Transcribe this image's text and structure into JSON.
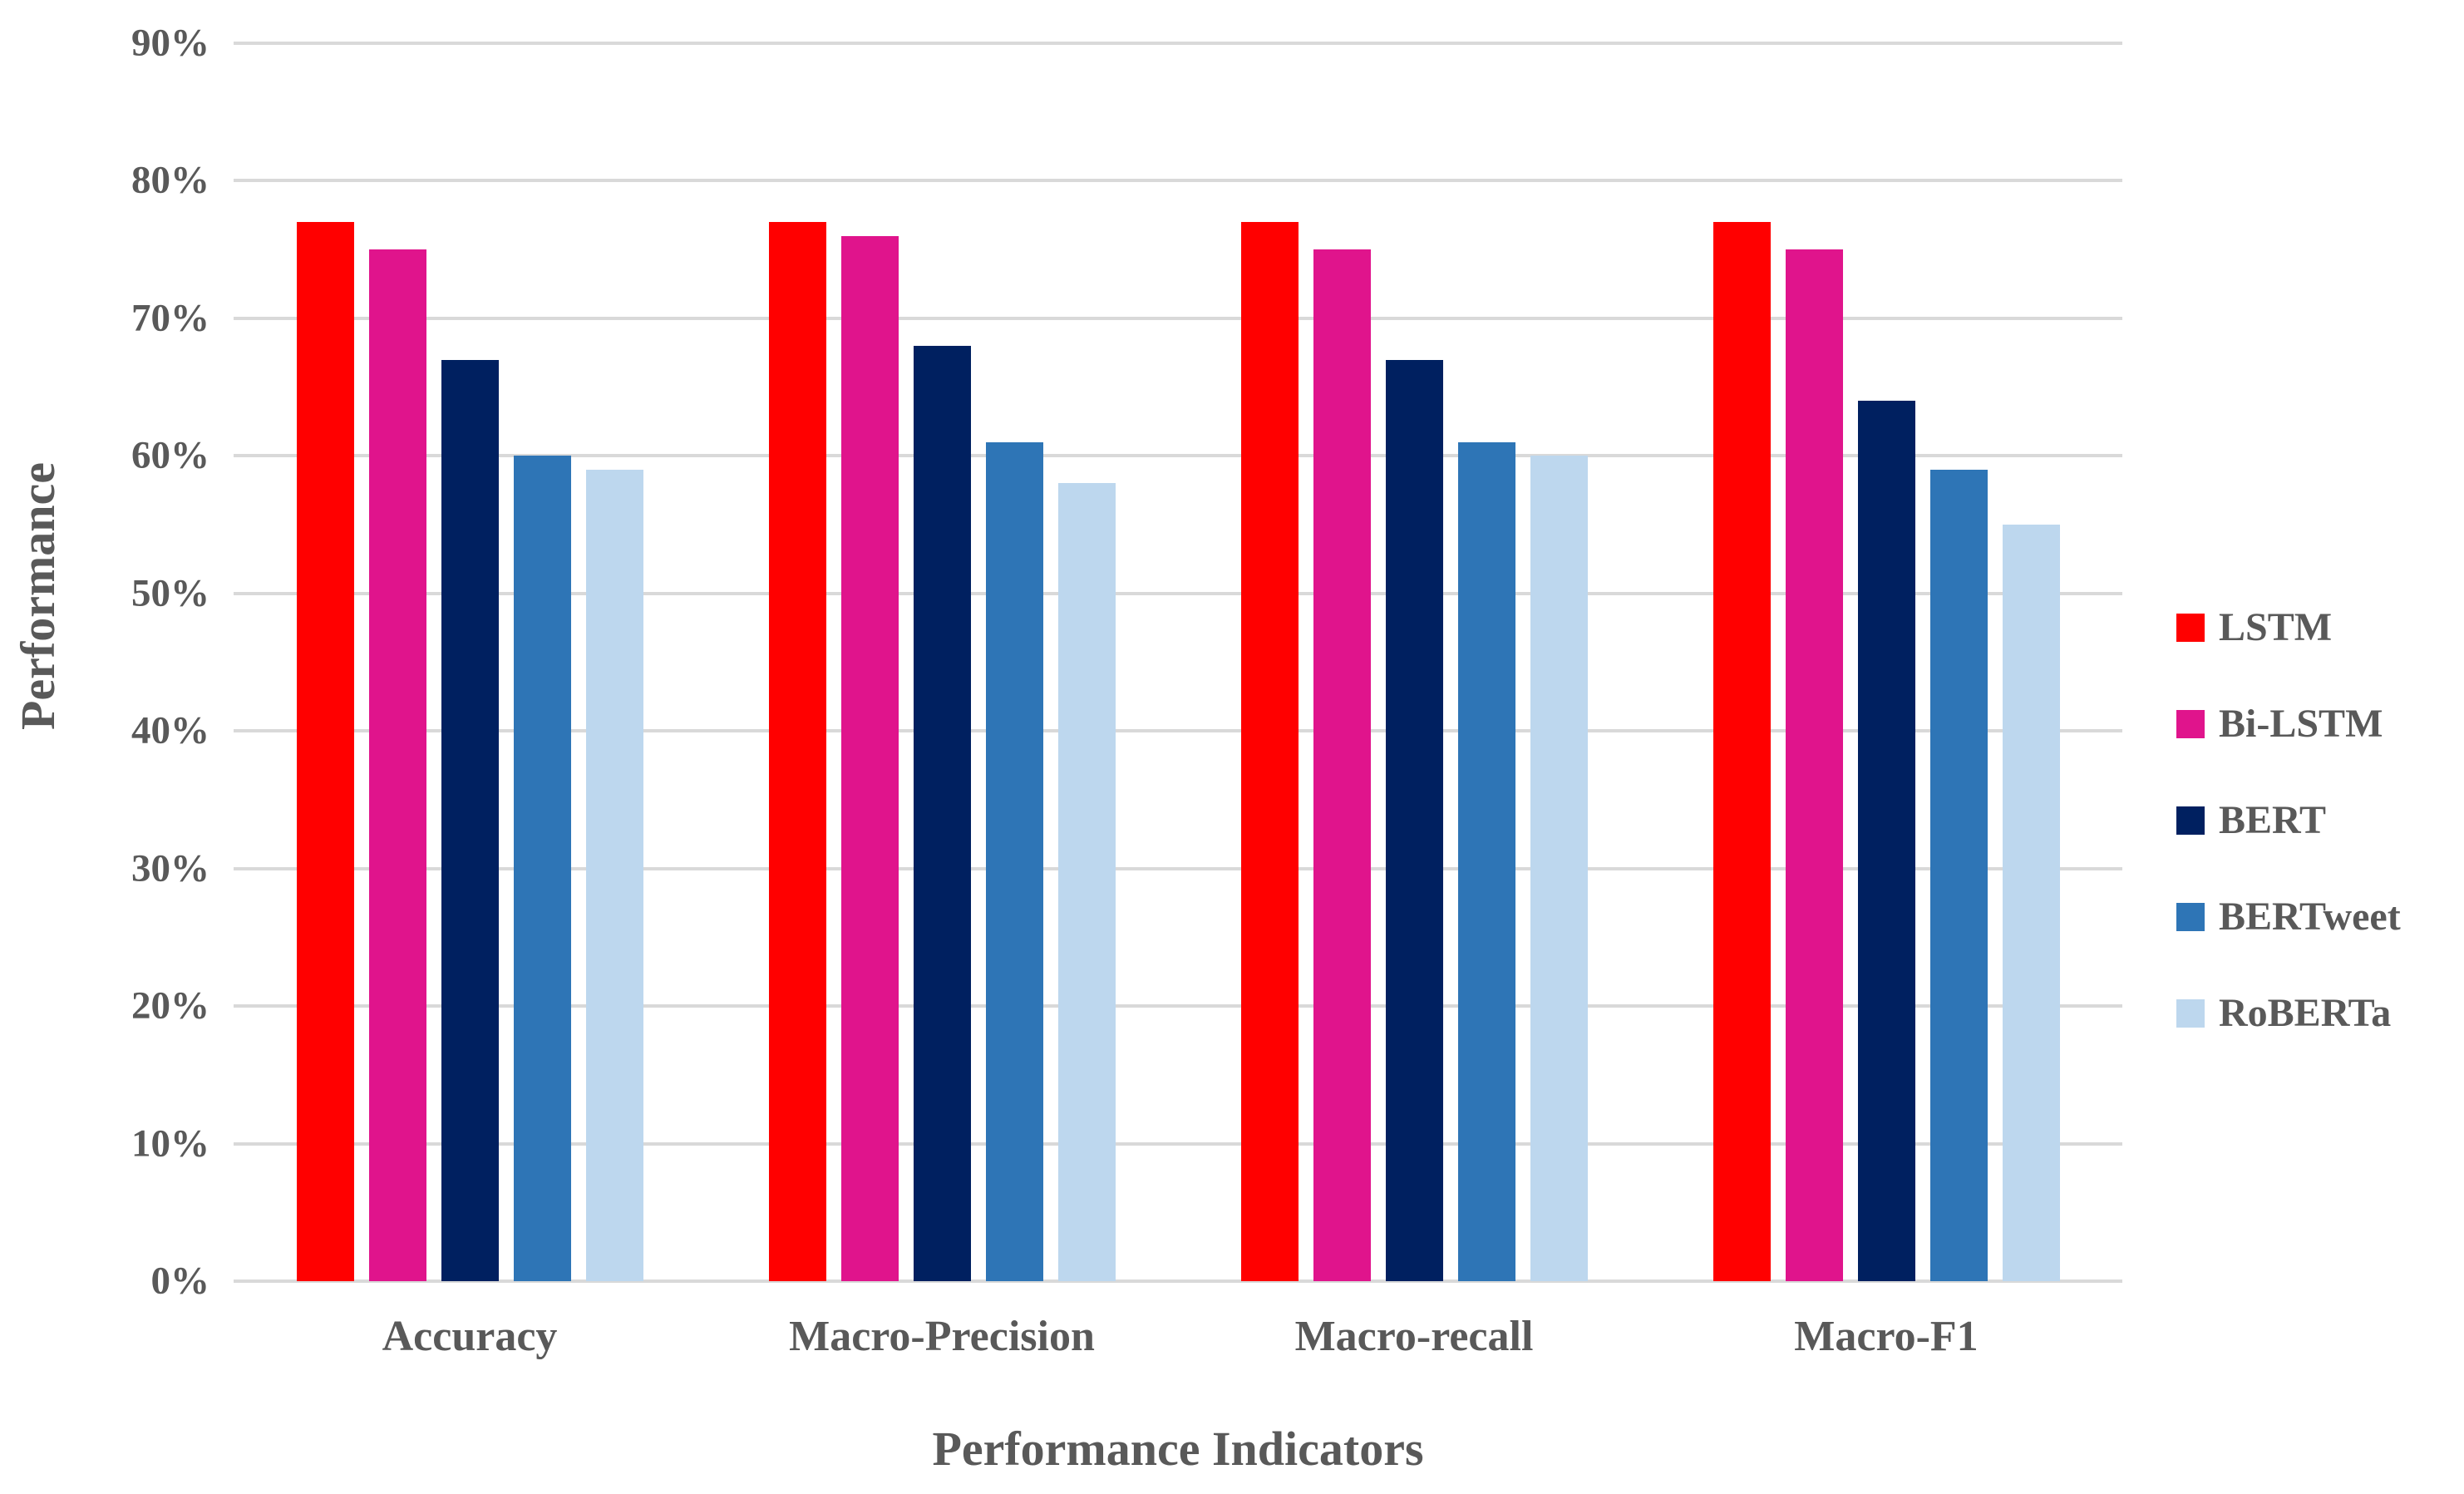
{
  "figure": {
    "background_color": "#FFFFFF",
    "text_color": "#595959",
    "gridline_color": "#D9D9D9"
  },
  "chart_data": {
    "type": "bar",
    "title": "",
    "xlabel": "Performance Indicators",
    "ylabel": "Performance",
    "categories": [
      "Accuracy",
      "Macro-Precision",
      "Macro-recall",
      "Macro-F1"
    ],
    "series": [
      {
        "name": "LSTM",
        "color": "#FF0000",
        "values": [
          77,
          77,
          77,
          77
        ]
      },
      {
        "name": "Bi-LSTM",
        "color": "#E0148C",
        "values": [
          75,
          76,
          75,
          75
        ]
      },
      {
        "name": "BERT",
        "color": "#002060",
        "values": [
          67,
          68,
          67,
          64
        ]
      },
      {
        "name": "BERTweet",
        "color": "#2E75B6",
        "values": [
          60,
          61,
          61,
          59
        ]
      },
      {
        "name": "RoBERTa",
        "color": "#BDD7EE",
        "values": [
          59,
          58,
          60,
          55
        ]
      }
    ],
    "ylim": [
      0,
      90
    ],
    "ytick_step": 10,
    "ytick_labels": [
      "0%",
      "10%",
      "20%",
      "30%",
      "40%",
      "50%",
      "60%",
      "70%",
      "80%",
      "90%"
    ],
    "grid": true,
    "legend_position": "right"
  }
}
